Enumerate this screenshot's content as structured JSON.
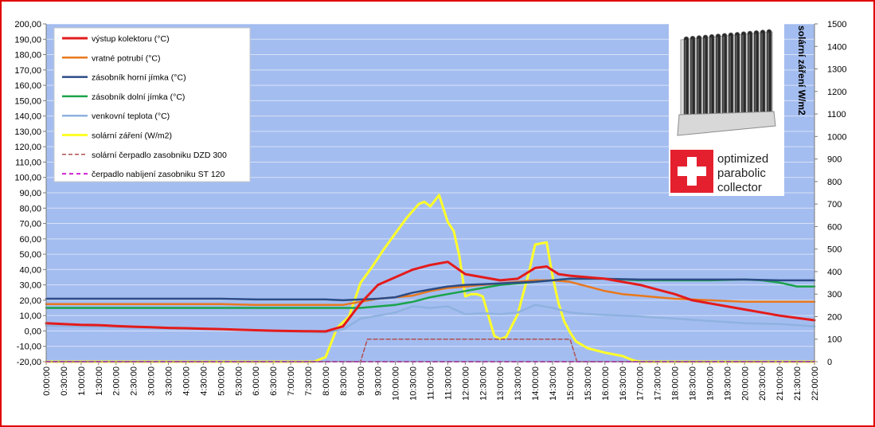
{
  "chart_data": {
    "type": "line",
    "title": "",
    "xlabel": "",
    "ylabel": "",
    "ylabel_right": "solární záření W/m2",
    "ylim": [
      -20,
      200
    ],
    "ylim_right": [
      0,
      1500
    ],
    "yticks": [
      "200,00",
      "190,00",
      "180,00",
      "170,00",
      "160,00",
      "150,00",
      "140,00",
      "130,00",
      "120,00",
      "110,00",
      "100,00",
      "90,00",
      "80,00",
      "70,00",
      "60,00",
      "50,00",
      "40,00",
      "30,00",
      "20,00",
      "10,00",
      "0,00",
      "-10,00",
      "-20,00"
    ],
    "yticks_right": [
      "1500",
      "1400",
      "1300",
      "1200",
      "1100",
      "1000",
      "900",
      "800",
      "700",
      "600",
      "500",
      "400",
      "300",
      "200",
      "100",
      "0"
    ],
    "x_ticks": [
      "0:00:00",
      "0:30:00",
      "1:00:00",
      "1:30:00",
      "2:00:00",
      "2:30:00",
      "3:00:00",
      "3:30:00",
      "4:00:00",
      "4:30:00",
      "5:00:00",
      "5:30:00",
      "6:00:00",
      "6:30:00",
      "7:00:00",
      "7:30:00",
      "8:00:00",
      "8:30:00",
      "9:00:00",
      "9:30:00",
      "10:00:00",
      "10:30:00",
      "11:00:00",
      "11:30:00",
      "12:00:00",
      "12:30:00",
      "13:00:00",
      "13:30:00",
      "14:00:00",
      "14:30:00",
      "15:00:00",
      "15:30:00",
      "16:00:00",
      "16:30:00",
      "17:00:00",
      "17:30:00",
      "18:00:00",
      "18:30:00",
      "19:00:00",
      "19:30:00",
      "20:00:00",
      "20:30:00",
      "21:00:00",
      "21:30:00",
      "22:00:00"
    ],
    "x_range_hours": [
      0,
      22
    ],
    "grid": true,
    "legend": "top-left",
    "plot_background": "#a4bdf0",
    "series": [
      {
        "name": "výstup kolektoru (°C)",
        "color": "#e31b1b",
        "width": 3,
        "dash": "",
        "axis": "left",
        "points": [
          [
            0,
            5
          ],
          [
            0.5,
            4.5
          ],
          [
            1,
            4
          ],
          [
            1.5,
            3.8
          ],
          [
            2,
            3.2
          ],
          [
            2.5,
            2.8
          ],
          [
            3,
            2.4
          ],
          [
            3.5,
            2
          ],
          [
            4,
            1.8
          ],
          [
            4.5,
            1.5
          ],
          [
            5,
            1.2
          ],
          [
            5.5,
            0.8
          ],
          [
            6,
            0.5
          ],
          [
            6.5,
            0.2
          ],
          [
            7,
            0
          ],
          [
            7.5,
            -0.2
          ],
          [
            8,
            -0.3
          ],
          [
            8.5,
            3
          ],
          [
            9,
            18
          ],
          [
            9.5,
            30
          ],
          [
            10,
            35
          ],
          [
            10.5,
            40
          ],
          [
            11,
            43
          ],
          [
            11.5,
            45
          ],
          [
            12,
            37
          ],
          [
            12.5,
            35
          ],
          [
            13,
            33
          ],
          [
            13.5,
            34
          ],
          [
            14,
            41
          ],
          [
            14.33,
            42
          ],
          [
            14.67,
            37
          ],
          [
            15,
            36
          ],
          [
            15.5,
            35
          ],
          [
            16,
            34
          ],
          [
            16.5,
            32
          ],
          [
            17,
            30
          ],
          [
            17.5,
            27
          ],
          [
            18,
            24
          ],
          [
            18.5,
            20
          ],
          [
            19,
            18
          ],
          [
            19.5,
            16
          ],
          [
            20,
            14
          ],
          [
            20.5,
            12
          ],
          [
            21,
            10
          ],
          [
            21.5,
            8.5
          ],
          [
            22,
            7
          ]
        ]
      },
      {
        "name": "vratné potrubí (°C)",
        "color": "#e8781c",
        "width": 2.5,
        "dash": "",
        "axis": "left",
        "points": [
          [
            0,
            17.5
          ],
          [
            1,
            17.5
          ],
          [
            2,
            17.5
          ],
          [
            3,
            17.5
          ],
          [
            4,
            17.5
          ],
          [
            5,
            17.5
          ],
          [
            6,
            17
          ],
          [
            7,
            17
          ],
          [
            8,
            17
          ],
          [
            8.5,
            17
          ],
          [
            9,
            19
          ],
          [
            9.5,
            21
          ],
          [
            10,
            22
          ],
          [
            10.5,
            23
          ],
          [
            11,
            26
          ],
          [
            11.5,
            28
          ],
          [
            12,
            29
          ],
          [
            12.5,
            30
          ],
          [
            13,
            31
          ],
          [
            13.5,
            32
          ],
          [
            14,
            33
          ],
          [
            14.5,
            33
          ],
          [
            15,
            32
          ],
          [
            15.5,
            29
          ],
          [
            16,
            26
          ],
          [
            16.5,
            24
          ],
          [
            17,
            23
          ],
          [
            17.5,
            22
          ],
          [
            18,
            21
          ],
          [
            18.5,
            20.5
          ],
          [
            19,
            20
          ],
          [
            19.5,
            19.5
          ],
          [
            20,
            19
          ],
          [
            21,
            19
          ],
          [
            22,
            19
          ]
        ]
      },
      {
        "name": "zásobník horní jímka (°C)",
        "color": "#2c4c86",
        "width": 2.5,
        "dash": "",
        "axis": "left",
        "points": [
          [
            0,
            21
          ],
          [
            1,
            21
          ],
          [
            2,
            21
          ],
          [
            3,
            21
          ],
          [
            4,
            21
          ],
          [
            5,
            21
          ],
          [
            6,
            20.5
          ],
          [
            7,
            20.5
          ],
          [
            8,
            20.5
          ],
          [
            8.5,
            20
          ],
          [
            9,
            20.5
          ],
          [
            9.5,
            21
          ],
          [
            10,
            22
          ],
          [
            10.5,
            25
          ],
          [
            11,
            27
          ],
          [
            11.5,
            29
          ],
          [
            12,
            30
          ],
          [
            12.5,
            30.5
          ],
          [
            13,
            31
          ],
          [
            13.5,
            31.5
          ],
          [
            14,
            32
          ],
          [
            14.5,
            33
          ],
          [
            15,
            34
          ],
          [
            15.5,
            34
          ],
          [
            16,
            34
          ],
          [
            17,
            33.5
          ],
          [
            18,
            33.5
          ],
          [
            19,
            33.5
          ],
          [
            20,
            33.5
          ],
          [
            21,
            33
          ],
          [
            22,
            33
          ]
        ]
      },
      {
        "name": "zásobník dolní jímka (°C)",
        "color": "#1aa34a",
        "width": 2.5,
        "dash": "",
        "axis": "left",
        "points": [
          [
            0,
            15
          ],
          [
            1,
            15
          ],
          [
            2,
            15
          ],
          [
            3,
            15
          ],
          [
            4,
            15
          ],
          [
            5,
            15
          ],
          [
            6,
            15
          ],
          [
            7,
            15
          ],
          [
            8,
            15
          ],
          [
            8.5,
            15
          ],
          [
            9,
            15
          ],
          [
            9.5,
            16
          ],
          [
            10,
            17
          ],
          [
            10.5,
            19
          ],
          [
            11,
            22
          ],
          [
            11.5,
            24
          ],
          [
            12,
            26
          ],
          [
            12.5,
            28
          ],
          [
            13,
            30
          ],
          [
            13.5,
            31
          ],
          [
            14,
            32
          ],
          [
            14.5,
            33
          ],
          [
            15,
            34
          ],
          [
            16,
            34
          ],
          [
            17,
            33
          ],
          [
            18,
            33
          ],
          [
            19,
            33
          ],
          [
            20,
            33.5
          ],
          [
            20.5,
            33
          ],
          [
            21,
            31.5
          ],
          [
            21.5,
            29
          ],
          [
            22,
            29
          ]
        ]
      },
      {
        "name": "venkovní teplota (°C)",
        "color": "#8fb2e0",
        "width": 2.5,
        "dash": "",
        "axis": "left",
        "points": [
          [
            0,
            3.5
          ],
          [
            1,
            3
          ],
          [
            2,
            2.5
          ],
          [
            3,
            2
          ],
          [
            4,
            1.5
          ],
          [
            5,
            1.2
          ],
          [
            6,
            0.5
          ],
          [
            7,
            -0.5
          ],
          [
            8,
            -1
          ],
          [
            8.5,
            1
          ],
          [
            9,
            8
          ],
          [
            9.5,
            10
          ],
          [
            10,
            12
          ],
          [
            10.5,
            16
          ],
          [
            11,
            15
          ],
          [
            11.5,
            16
          ],
          [
            12,
            11
          ],
          [
            12.5,
            11.5
          ],
          [
            13,
            11
          ],
          [
            13.5,
            12
          ],
          [
            14,
            17
          ],
          [
            14.5,
            15
          ],
          [
            15,
            12
          ],
          [
            15.5,
            11
          ],
          [
            16,
            10.5
          ],
          [
            16.5,
            10
          ],
          [
            17,
            9.5
          ],
          [
            18,
            8
          ],
          [
            19,
            6.5
          ],
          [
            20,
            5
          ],
          [
            21,
            4.5
          ],
          [
            22,
            3
          ]
        ]
      },
      {
        "name": "solární záření (W/m2)",
        "color": "#ffff2a",
        "width": 3,
        "dash": "",
        "axis": "right",
        "points": [
          [
            0,
            0
          ],
          [
            7.67,
            0
          ],
          [
            8,
            20
          ],
          [
            8.33,
            150
          ],
          [
            8.67,
            200
          ],
          [
            9,
            350
          ],
          [
            9.33,
            420
          ],
          [
            9.67,
            500
          ],
          [
            10,
            570
          ],
          [
            10.33,
            640
          ],
          [
            10.67,
            700
          ],
          [
            10.83,
            710
          ],
          [
            11,
            690
          ],
          [
            11.25,
            740
          ],
          [
            11.5,
            620
          ],
          [
            11.67,
            580
          ],
          [
            11.83,
            470
          ],
          [
            12,
            290
          ],
          [
            12.17,
            300
          ],
          [
            12.33,
            300
          ],
          [
            12.5,
            290
          ],
          [
            12.83,
            115
          ],
          [
            13,
            100
          ],
          [
            13.17,
            110
          ],
          [
            13.5,
            210
          ],
          [
            13.83,
            400
          ],
          [
            14,
            520
          ],
          [
            14.33,
            530
          ],
          [
            14.5,
            380
          ],
          [
            14.67,
            260
          ],
          [
            14.83,
            180
          ],
          [
            15,
            130
          ],
          [
            15.17,
            90
          ],
          [
            15.5,
            60
          ],
          [
            16,
            40
          ],
          [
            16.5,
            25
          ],
          [
            16.83,
            5
          ],
          [
            17,
            0
          ],
          [
            22,
            0
          ]
        ]
      },
      {
        "name": "solární čerpadlo zasobniku DZD 300",
        "color": "#b05050",
        "width": 1.5,
        "dash": "5,3",
        "axis": "right",
        "points": [
          [
            0,
            0
          ],
          [
            9,
            0
          ],
          [
            9.2,
            100
          ],
          [
            15,
            100
          ],
          [
            15.2,
            0
          ],
          [
            22,
            0
          ]
        ]
      },
      {
        "name": "čerpadlo nabíjení zasobniku ST 120",
        "color": "#d020d0",
        "width": 2,
        "dash": "5,4",
        "axis": "right",
        "points": [
          [
            0,
            0
          ],
          [
            22,
            0
          ]
        ]
      }
    ]
  },
  "photo": {
    "logo_text": [
      "optimized",
      "parabolic",
      "collector"
    ],
    "logo_color": "#e4202e"
  }
}
